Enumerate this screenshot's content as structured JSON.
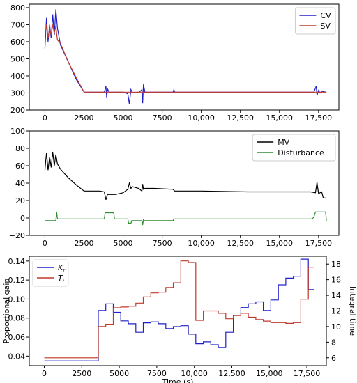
{
  "chart_data": [
    {
      "type": "line",
      "xlim": [
        -1000,
        18800
      ],
      "ylim": [
        200,
        820
      ],
      "x_ticks": [
        0,
        2500,
        5000,
        7500,
        10000,
        12500,
        15000,
        17500
      ],
      "x_tick_labels": [
        "0",
        "2500",
        "5000",
        "7500",
        "10,000",
        "12,500",
        "15,000",
        "17,500"
      ],
      "y_ticks": [
        200,
        300,
        400,
        500,
        600,
        700,
        800
      ],
      "y_tick_labels": [
        "200",
        "300",
        "400",
        "500",
        "600",
        "700",
        "800"
      ],
      "grid": false,
      "legend_position": "top-right",
      "series": [
        {
          "name": "CV",
          "color": "#2020c8",
          "x": [
            0,
            100,
            200,
            300,
            400,
            500,
            600,
            700,
            800,
            1000,
            1500,
            2000,
            2500,
            3000,
            3800,
            3900,
            3950,
            4000,
            4100,
            5000,
            5300,
            5400,
            5500,
            5600,
            6000,
            6200,
            6250,
            6300,
            6400,
            7000,
            8200,
            8250,
            8300,
            9000,
            12000,
            15000,
            17200,
            17350,
            17400,
            17500,
            17600,
            17700,
            18000
          ],
          "y": [
            560,
            740,
            600,
            700,
            620,
            760,
            640,
            790,
            680,
            580,
            480,
            380,
            305,
            305,
            305,
            340,
            270,
            325,
            305,
            305,
            295,
            235,
            320,
            300,
            302,
            320,
            240,
            350,
            305,
            305,
            305,
            320,
            305,
            305,
            305,
            305,
            305,
            340,
            285,
            315,
            300,
            310,
            305
          ]
        },
        {
          "name": "SV",
          "color": "#c0392b",
          "x": [
            0,
            100,
            200,
            300,
            400,
            500,
            600,
            700,
            800,
            1000,
            1500,
            2000,
            2500,
            5000,
            10000,
            15000,
            18000
          ],
          "y": [
            630,
            700,
            620,
            680,
            640,
            700,
            650,
            690,
            610,
            590,
            480,
            390,
            305,
            305,
            305,
            305,
            305
          ]
        }
      ]
    },
    {
      "type": "line",
      "xlim": [
        -1000,
        18800
      ],
      "ylim": [
        -20,
        100
      ],
      "x_ticks": [
        0,
        2500,
        5000,
        7500,
        10000,
        12500,
        15000,
        17500
      ],
      "x_tick_labels": [
        "0",
        "2500",
        "5000",
        "7500",
        "10,000",
        "12,500",
        "15,000",
        "17,500"
      ],
      "y_ticks": [
        -20,
        0,
        20,
        40,
        60,
        80,
        100
      ],
      "y_tick_labels": [
        "−20",
        "0",
        "20",
        "40",
        "60",
        "80",
        "100"
      ],
      "grid": false,
      "legend_position": "top-right",
      "series": [
        {
          "name": "MV",
          "color": "#000000",
          "x": [
            0,
            100,
            200,
            300,
            400,
            500,
            600,
            700,
            800,
            1000,
            1500,
            2000,
            2500,
            3500,
            3800,
            3900,
            4000,
            4500,
            5000,
            5300,
            5400,
            5500,
            5600,
            6000,
            6200,
            6250,
            6300,
            6400,
            7000,
            8200,
            8300,
            10000,
            13000,
            17000,
            17300,
            17400,
            17500,
            17700,
            17800,
            18000
          ],
          "y": [
            55,
            75,
            55,
            70,
            58,
            76,
            60,
            73,
            62,
            56,
            46,
            38,
            31,
            31,
            30,
            21,
            27,
            27,
            29,
            33,
            40,
            34,
            36,
            34,
            31,
            39,
            33,
            34,
            34,
            33,
            31,
            31,
            30,
            30,
            29,
            41,
            28,
            30,
            23,
            23
          ]
        },
        {
          "name": "Disturbance",
          "color": "#2e8b2e",
          "x": [
            0,
            700,
            750,
            800,
            3800,
            3850,
            4400,
            4450,
            5300,
            5350,
            5500,
            5550,
            6200,
            6250,
            6300,
            6350,
            8200,
            8250,
            17100,
            17200,
            17300,
            17950,
            18000
          ],
          "y": [
            -3,
            -3,
            7,
            -1,
            -1,
            6,
            6,
            -1,
            -1,
            -6,
            -6,
            -3,
            -3,
            -8,
            -2,
            -3,
            -3,
            -1,
            -1,
            1,
            7,
            7,
            -3
          ]
        }
      ]
    },
    {
      "type": "line",
      "step": true,
      "xlabel": "Time (s)",
      "ylabel": "Proportional gain",
      "ylabel_right": "Integral time",
      "xlim": [
        -1000,
        18800
      ],
      "ylim": [
        0.03,
        0.145
      ],
      "ylim_right": [
        5,
        19
      ],
      "x_ticks": [
        0,
        2500,
        5000,
        7500,
        10000,
        12500,
        15000,
        17500
      ],
      "x_tick_labels": [
        "0",
        "2500",
        "5000",
        "7500",
        "10,000",
        "12,500",
        "15,000",
        "17,500"
      ],
      "y_ticks": [
        0.04,
        0.06,
        0.08,
        0.1,
        0.12,
        0.14
      ],
      "y_tick_labels": [
        "0.04",
        "0.06",
        "0.08",
        "0.10",
        "0.12",
        "0.14"
      ],
      "y_ticks_right": [
        6,
        8,
        10,
        12,
        14,
        16,
        18
      ],
      "y_tick_labels_right": [
        "6",
        "8",
        "10",
        "12",
        "14",
        "16",
        "18"
      ],
      "grid": false,
      "legend_position": "top-left",
      "series": [
        {
          "name": "K",
          "subscript": "c",
          "color": "#2020c8",
          "axis": "left",
          "x": [
            0,
            3600,
            4100,
            4600,
            5100,
            5600,
            6100,
            6600,
            7100,
            7600,
            8100,
            8600,
            9100,
            9600,
            10100,
            10600,
            11100,
            11600,
            12100,
            12600,
            13100,
            13600,
            14100,
            14600,
            15100,
            15600,
            16100,
            16600,
            17100,
            17600,
            18000
          ],
          "y": [
            0.035,
            0.088,
            0.095,
            0.086,
            0.077,
            0.074,
            0.065,
            0.075,
            0.076,
            0.074,
            0.069,
            0.071,
            0.072,
            0.063,
            0.053,
            0.055,
            0.052,
            0.049,
            0.065,
            0.083,
            0.091,
            0.095,
            0.097,
            0.088,
            0.099,
            0.115,
            0.122,
            0.124,
            0.142,
            0.11,
            0.11
          ]
        },
        {
          "name": "T",
          "subscript": "i",
          "color": "#c0392b",
          "axis": "right",
          "x": [
            0,
            3600,
            4100,
            4600,
            5100,
            5600,
            6100,
            6600,
            7100,
            7600,
            8100,
            8600,
            9100,
            9600,
            10100,
            10600,
            11100,
            11600,
            12100,
            12600,
            13100,
            13600,
            14100,
            14600,
            15100,
            15600,
            16100,
            16600,
            17100,
            17600,
            18000
          ],
          "y": [
            6,
            10,
            10.3,
            12.4,
            12.5,
            12.6,
            13,
            13.8,
            14.3,
            14.4,
            15,
            15.6,
            18.4,
            18.2,
            10.8,
            12,
            12,
            11.7,
            11,
            11.4,
            11.7,
            11.2,
            10.9,
            10.7,
            10.5,
            10.5,
            10.4,
            10.5,
            13.5,
            17.6,
            17.6
          ]
        }
      ]
    }
  ]
}
